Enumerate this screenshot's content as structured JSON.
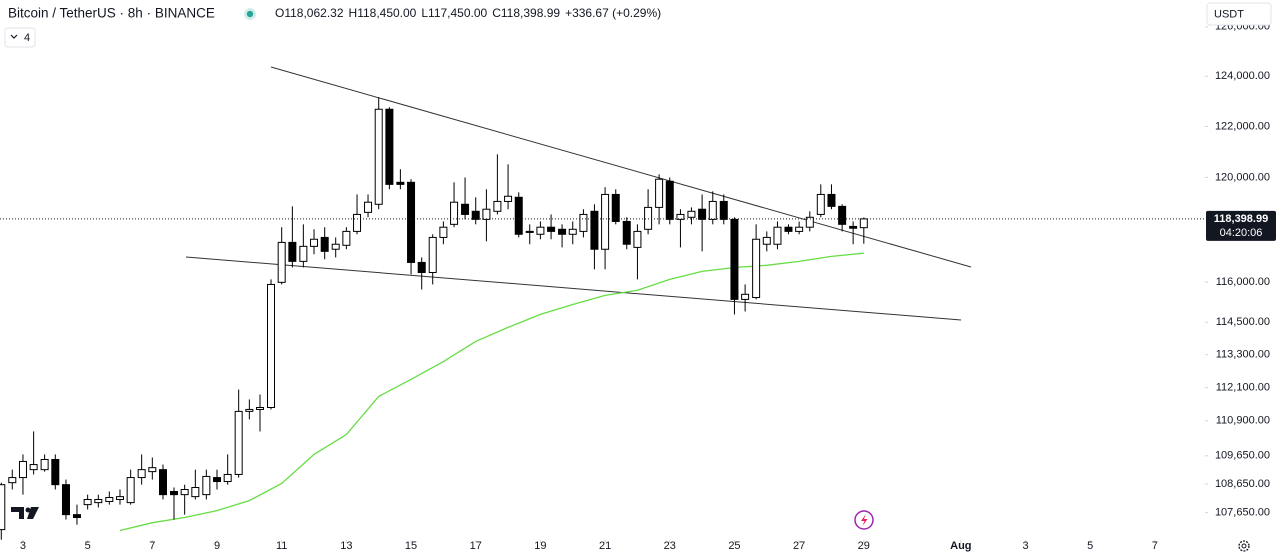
{
  "header": {
    "symbol": "Bitcoin / TetherUS · 8h · BINANCE",
    "change": "+336.67 (+0.29%)",
    "indicators": 4,
    "currency": "USDT"
  },
  "chart_data": {
    "type": "candlestick",
    "ohlc_keys": [
      "O",
      "H",
      "L",
      "C"
    ],
    "ohlc_labels": [
      "118,062.32",
      "118,450.00",
      "117,450.00",
      "118,398.99"
    ],
    "x": [
      2.33,
      2.67,
      3,
      3.33,
      3.67,
      4,
      4.33,
      4.67,
      5,
      5.33,
      5.67,
      6,
      6.33,
      6.67,
      7,
      7.33,
      7.67,
      8,
      8.33,
      8.67,
      9,
      9.33,
      9.67,
      10,
      10.33,
      10.67,
      11,
      11.33,
      11.67,
      12,
      12.33,
      12.67,
      13,
      13.33,
      13.67,
      14,
      14.33,
      14.67,
      15,
      15.33,
      15.67,
      16,
      16.33,
      16.67,
      17,
      17.33,
      17.67,
      18,
      18.33,
      18.67,
      19,
      19.33,
      19.67,
      20,
      20.33,
      20.67,
      21,
      21.33,
      21.67,
      22,
      22.33,
      22.67,
      23,
      23.33,
      23.67,
      24,
      24.33,
      24.67,
      25,
      25.33,
      25.67,
      26,
      26.33,
      26.67,
      27,
      27.33,
      27.67,
      28,
      28.33,
      28.67,
      29
    ],
    "open": [
      107060,
      108700,
      108880,
      109160,
      109160,
      109520,
      108630,
      107580,
      107930,
      108000,
      108040,
      108110,
      108000,
      108880,
      109090,
      109160,
      108390,
      108280,
      108210,
      108280,
      108880,
      108740,
      108990,
      111240,
      111310,
      111380,
      115990,
      117500,
      116780,
      117350,
      117690,
      117240,
      117390,
      117920,
      118650,
      118960,
      122680,
      119810,
      119810,
      116740,
      116360,
      117690,
      118190,
      118960,
      118690,
      118380,
      118690,
      119070,
      119230,
      117920,
      117810,
      118080,
      118000,
      117810,
      117920,
      118690,
      117240,
      119340,
      118300,
      117310,
      118000,
      118840,
      119850,
      118380,
      118460,
      118770,
      118380,
      119070,
      118380,
      115350,
      115420,
      117430,
      117430,
      118080,
      117920,
      118080,
      118570,
      119340,
      118880,
      118110,
      118062.32
    ],
    "high": [
      108700,
      109160,
      109700,
      110520,
      109700,
      109700,
      108810,
      107930,
      108280,
      108280,
      108390,
      108460,
      109160,
      109700,
      109590,
      109340,
      108530,
      108630,
      109160,
      109160,
      109160,
      109700,
      112030,
      111670,
      111850,
      116100,
      118080,
      118880,
      118190,
      118000,
      118080,
      117690,
      118080,
      119340,
      119340,
      123160,
      122760,
      120320,
      119930,
      116930,
      117810,
      118300,
      119810,
      120000,
      119230,
      119540,
      120900,
      120510,
      119420,
      118190,
      118300,
      118570,
      118190,
      118300,
      118770,
      118960,
      119620,
      119540,
      118460,
      118190,
      119540,
      120120,
      120000,
      118770,
      118840,
      119340,
      119460,
      119340,
      118460,
      115910,
      118190,
      117920,
      118300,
      118190,
      118300,
      118690,
      119730,
      119730,
      118960,
      118300,
      118450
    ],
    "low": [
      106710,
      108460,
      108280,
      108990,
      109090,
      108460,
      107410,
      107230,
      107760,
      107830,
      107930,
      107930,
      107930,
      108630,
      108810,
      108110,
      107410,
      107580,
      108110,
      108110,
      108460,
      108630,
      108880,
      110950,
      110520,
      111310,
      115910,
      116550,
      116550,
      117050,
      116860,
      116930,
      117240,
      117810,
      118460,
      118770,
      119540,
      119540,
      116290,
      115720,
      115910,
      117430,
      118080,
      118380,
      118190,
      117540,
      118570,
      118770,
      117690,
      117430,
      117620,
      117620,
      117310,
      117430,
      117690,
      116480,
      116480,
      118190,
      117240,
      116100,
      117810,
      118190,
      118190,
      117310,
      118190,
      117160,
      118190,
      118190,
      114790,
      114900,
      115350,
      117160,
      117240,
      117810,
      117810,
      117920,
      118460,
      118770,
      117920,
      117430,
      117450
    ],
    "close": [
      108630,
      108880,
      109450,
      109340,
      109520,
      108630,
      107580,
      107480,
      108110,
      108110,
      108180,
      108210,
      108880,
      109160,
      109230,
      108280,
      108280,
      108460,
      108530,
      108920,
      108740,
      108990,
      111240,
      111310,
      111380,
      115910,
      117500,
      116780,
      117350,
      117620,
      117160,
      117430,
      117920,
      118570,
      119040,
      122680,
      119730,
      119730,
      116740,
      116360,
      117690,
      118080,
      119040,
      118570,
      118380,
      118770,
      119070,
      119270,
      117810,
      117880,
      118080,
      117920,
      117810,
      118000,
      118570,
      117240,
      119340,
      118300,
      117430,
      117920,
      118840,
      119930,
      118380,
      118570,
      118690,
      118380,
      119070,
      118380,
      115350,
      115540,
      117620,
      117690,
      118080,
      117920,
      118080,
      118460,
      119340,
      118880,
      118190,
      118040,
      118398.99
    ],
    "up_color": "#ffffff",
    "down_color": "#000000",
    "wick_color": "#000000",
    "ma": {
      "color": "#66dd44",
      "x": [
        6,
        7,
        8,
        9,
        10,
        11,
        12,
        13,
        14,
        15,
        16,
        17,
        18,
        19,
        20,
        21,
        22,
        23,
        24,
        25,
        26,
        27,
        28,
        29
      ],
      "values": [
        107030,
        107300,
        107480,
        107720,
        108070,
        108670,
        109700,
        110410,
        111780,
        112400,
        113050,
        113790,
        114310,
        114790,
        115160,
        115500,
        115690,
        116100,
        116400,
        116550,
        116630,
        116780,
        116970,
        117090
      ]
    },
    "xlim": [
      2.29,
      39.55
    ],
    "xticks": [
      3,
      5,
      7,
      9,
      11,
      13,
      15,
      17,
      19,
      21,
      23,
      25,
      27,
      29,
      {
        "value": 32,
        "label": "Aug"
      },
      {
        "value": 34,
        "label": "3"
      },
      {
        "value": 36,
        "label": "5"
      },
      {
        "value": 38,
        "label": "7"
      }
    ],
    "ylim": [
      106700,
      127100
    ],
    "log_y": true,
    "yticks": [
      {
        "value": 107650,
        "label": "107,650.00"
      },
      {
        "value": 108650,
        "label": "108,650.00"
      },
      {
        "value": 109650,
        "label": "109,650.00"
      },
      {
        "value": 110900,
        "label": "110,900.00"
      },
      {
        "value": 112100,
        "label": "112,100.00"
      },
      {
        "value": 113300,
        "label": "113,300.00"
      },
      {
        "value": 114500,
        "label": "114,500.00"
      },
      {
        "value": 116000,
        "label": "116,000.00"
      },
      {
        "value": 120000,
        "label": "120,000.00"
      },
      {
        "value": 122000,
        "label": "122,000.00"
      },
      {
        "value": 124000,
        "label": "124,000.00"
      },
      {
        "value": 126000,
        "label": "126,000.00"
      }
    ],
    "last_price_label": "118,398.99",
    "countdown": "04:20:06"
  }
}
